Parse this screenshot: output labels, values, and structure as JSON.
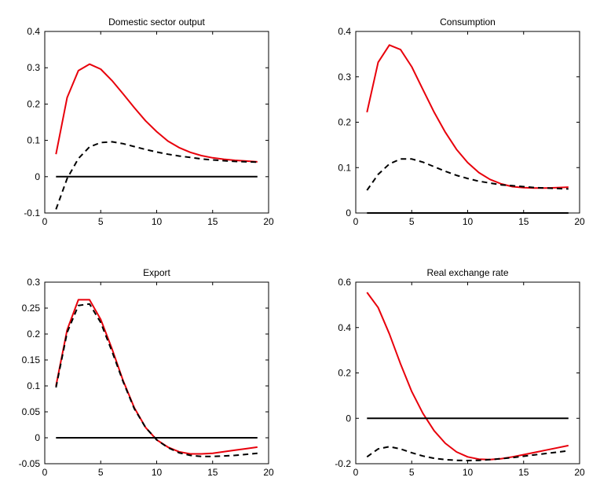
{
  "chart_data": [
    {
      "type": "line",
      "title": "Domestic sector output",
      "xlim": [
        0,
        20
      ],
      "ylim": [
        -0.1,
        0.4
      ],
      "xticks": [
        0,
        5,
        10,
        15,
        20
      ],
      "yticks": [
        -0.1,
        0,
        0.1,
        0.2,
        0.3,
        0.4
      ],
      "x": [
        1,
        2,
        3,
        4,
        5,
        6,
        7,
        8,
        9,
        10,
        11,
        12,
        13,
        14,
        15,
        16,
        17,
        18,
        19
      ],
      "series": [
        {
          "style": "solid",
          "color": "#e8000b",
          "values": [
            0.062,
            0.218,
            0.292,
            0.31,
            0.296,
            0.265,
            0.228,
            0.19,
            0.154,
            0.124,
            0.098,
            0.08,
            0.067,
            0.058,
            0.052,
            0.048,
            0.045,
            0.043,
            0.041
          ]
        },
        {
          "style": "dashed",
          "color": "#000000",
          "values": [
            -0.09,
            -0.005,
            0.05,
            0.082,
            0.094,
            0.096,
            0.091,
            0.083,
            0.075,
            0.068,
            0.062,
            0.057,
            0.053,
            0.049,
            0.046,
            0.044,
            0.042,
            0.041,
            0.04
          ]
        },
        {
          "style": "solid",
          "color": "#000000",
          "values": [
            0,
            0,
            0,
            0,
            0,
            0,
            0,
            0,
            0,
            0,
            0,
            0,
            0,
            0,
            0,
            0,
            0,
            0,
            0
          ]
        }
      ]
    },
    {
      "type": "line",
      "title": "Consumption",
      "xlim": [
        0,
        20
      ],
      "ylim": [
        0,
        0.4
      ],
      "xticks": [
        0,
        5,
        10,
        15,
        20
      ],
      "yticks": [
        0,
        0.1,
        0.2,
        0.3,
        0.4
      ],
      "x": [
        1,
        2,
        3,
        4,
        5,
        6,
        7,
        8,
        9,
        10,
        11,
        12,
        13,
        14,
        15,
        16,
        17,
        18,
        19
      ],
      "series": [
        {
          "style": "solid",
          "color": "#e8000b",
          "values": [
            0.222,
            0.332,
            0.37,
            0.36,
            0.322,
            0.272,
            0.222,
            0.178,
            0.14,
            0.111,
            0.089,
            0.074,
            0.064,
            0.058,
            0.056,
            0.055,
            0.055,
            0.056,
            0.057
          ]
        },
        {
          "style": "dashed",
          "color": "#000000",
          "values": [
            0.05,
            0.085,
            0.108,
            0.119,
            0.119,
            0.112,
            0.102,
            0.092,
            0.083,
            0.076,
            0.07,
            0.066,
            0.062,
            0.06,
            0.058,
            0.056,
            0.055,
            0.054,
            0.053
          ]
        },
        {
          "style": "solid",
          "color": "#000000",
          "values": [
            0,
            0,
            0,
            0,
            0,
            0,
            0,
            0,
            0,
            0,
            0,
            0,
            0,
            0,
            0,
            0,
            0,
            0,
            0
          ]
        }
      ]
    },
    {
      "type": "line",
      "title": "Export",
      "xlim": [
        0,
        20
      ],
      "ylim": [
        -0.05,
        0.3
      ],
      "xticks": [
        0,
        5,
        10,
        15,
        20
      ],
      "yticks": [
        -0.05,
        0,
        0.05,
        0.1,
        0.15,
        0.2,
        0.25,
        0.3
      ],
      "x": [
        1,
        2,
        3,
        4,
        5,
        6,
        7,
        8,
        9,
        10,
        11,
        12,
        13,
        14,
        15,
        16,
        17,
        18,
        19
      ],
      "series": [
        {
          "style": "solid",
          "color": "#e8000b",
          "values": [
            0.1,
            0.208,
            0.266,
            0.266,
            0.228,
            0.172,
            0.11,
            0.058,
            0.02,
            -0.004,
            -0.018,
            -0.027,
            -0.031,
            -0.031,
            -0.03,
            -0.027,
            -0.024,
            -0.021,
            -0.018
          ]
        },
        {
          "style": "dashed",
          "color": "#000000",
          "values": [
            0.097,
            0.203,
            0.255,
            0.258,
            0.222,
            0.167,
            0.108,
            0.056,
            0.02,
            -0.004,
            -0.019,
            -0.029,
            -0.034,
            -0.036,
            -0.036,
            -0.035,
            -0.034,
            -0.032,
            -0.03
          ]
        },
        {
          "style": "solid",
          "color": "#000000",
          "values": [
            0,
            0,
            0,
            0,
            0,
            0,
            0,
            0,
            0,
            0,
            0,
            0,
            0,
            0,
            0,
            0,
            0,
            0,
            0
          ]
        }
      ]
    },
    {
      "type": "line",
      "title": "Real exchange rate",
      "xlim": [
        0,
        20
      ],
      "ylim": [
        -0.2,
        0.6
      ],
      "xticks": [
        0,
        5,
        10,
        15,
        20
      ],
      "yticks": [
        -0.2,
        0,
        0.2,
        0.4,
        0.6
      ],
      "x": [
        1,
        2,
        3,
        4,
        5,
        6,
        7,
        8,
        9,
        10,
        11,
        12,
        13,
        14,
        15,
        16,
        17,
        18,
        19
      ],
      "series": [
        {
          "style": "solid",
          "color": "#e8000b",
          "values": [
            0.555,
            0.488,
            0.372,
            0.24,
            0.118,
            0.022,
            -0.055,
            -0.11,
            -0.148,
            -0.17,
            -0.18,
            -0.182,
            -0.178,
            -0.17,
            -0.16,
            -0.15,
            -0.14,
            -0.13,
            -0.12
          ]
        },
        {
          "style": "dashed",
          "color": "#000000",
          "values": [
            -0.17,
            -0.135,
            -0.125,
            -0.135,
            -0.152,
            -0.166,
            -0.176,
            -0.182,
            -0.185,
            -0.186,
            -0.185,
            -0.182,
            -0.178,
            -0.173,
            -0.167,
            -0.161,
            -0.155,
            -0.149,
            -0.143
          ]
        },
        {
          "style": "solid",
          "color": "#000000",
          "values": [
            0,
            0,
            0,
            0,
            0,
            0,
            0,
            0,
            0,
            0,
            0,
            0,
            0,
            0,
            0,
            0,
            0,
            0,
            0
          ]
        }
      ]
    }
  ]
}
